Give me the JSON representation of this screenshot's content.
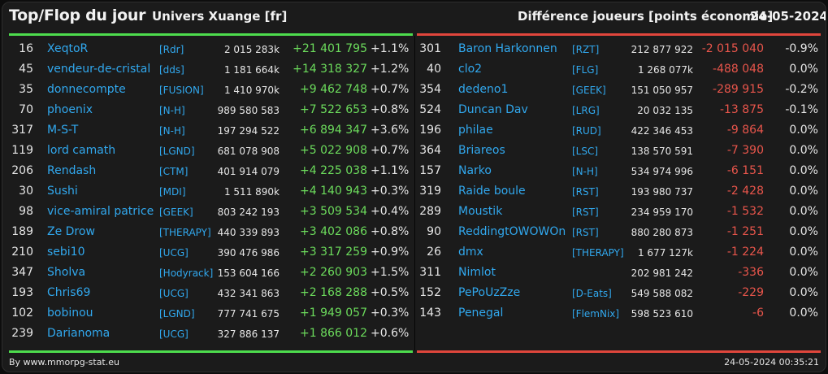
{
  "header": {
    "title": "Top/Flop du jour",
    "server": "Univers Xuange [fr]",
    "difference": "Différence joueurs [points économie]",
    "date": "24-05-2024"
  },
  "top": [
    {
      "rank": "16",
      "name": "XeqtoR",
      "alliance": "[Rdr]",
      "points": "2 015 283k",
      "delta": "+21 401 795",
      "pct": "+1.1%"
    },
    {
      "rank": "45",
      "name": "vendeur-de-cristal",
      "alliance": "[dds]",
      "points": "1 181 664k",
      "delta": "+14 318 327",
      "pct": "+1.2%"
    },
    {
      "rank": "35",
      "name": "donnecompte",
      "alliance": "[FUSION]",
      "points": "1 410 970k",
      "delta": "+9 462 748",
      "pct": "+0.7%"
    },
    {
      "rank": "70",
      "name": "phoenix",
      "alliance": "[N-H]",
      "points": "989 580 583",
      "delta": "+7 522 653",
      "pct": "+0.8%"
    },
    {
      "rank": "317",
      "name": "M-S-T",
      "alliance": "[N-H]",
      "points": "197 294 522",
      "delta": "+6 894 347",
      "pct": "+3.6%"
    },
    {
      "rank": "119",
      "name": "lord camath",
      "alliance": "[LGND]",
      "points": "681 078 908",
      "delta": "+5 022 908",
      "pct": "+0.7%"
    },
    {
      "rank": "206",
      "name": "Rendash",
      "alliance": "[CTM]",
      "points": "401 914 079",
      "delta": "+4 225 038",
      "pct": "+1.1%"
    },
    {
      "rank": "30",
      "name": "Sushi",
      "alliance": "[MDI]",
      "points": "1 511 890k",
      "delta": "+4 140 943",
      "pct": "+0.3%"
    },
    {
      "rank": "98",
      "name": "vice-amiral patrice",
      "alliance": "[GEEK]",
      "points": "803 242 193",
      "delta": "+3 509 534",
      "pct": "+0.4%"
    },
    {
      "rank": "189",
      "name": "Ze Drow",
      "alliance": "[THERAPY]",
      "points": "440 339 893",
      "delta": "+3 402 086",
      "pct": "+0.8%"
    },
    {
      "rank": "210",
      "name": "sebi10",
      "alliance": "[UCG]",
      "points": "390 476 986",
      "delta": "+3 317 259",
      "pct": "+0.9%"
    },
    {
      "rank": "347",
      "name": "Sholva",
      "alliance": "[Hodyrack]",
      "points": "153 604 166",
      "delta": "+2 260 903",
      "pct": "+1.5%"
    },
    {
      "rank": "193",
      "name": "Chris69",
      "alliance": "[UCG]",
      "points": "432 341 863",
      "delta": "+2 168 288",
      "pct": "+0.5%"
    },
    {
      "rank": "102",
      "name": "bobinou",
      "alliance": "[LGND]",
      "points": "777 741 675",
      "delta": "+1 949 057",
      "pct": "+0.3%"
    },
    {
      "rank": "239",
      "name": "Darianoma",
      "alliance": "[UCG]",
      "points": "327 886 137",
      "delta": "+1 866 012",
      "pct": "+0.6%"
    }
  ],
  "flop": [
    {
      "rank": "301",
      "name": "Baron Harkonnen",
      "alliance": "[RZT]",
      "points": "212 877 922",
      "delta": "-2 015 040",
      "pct": "-0.9%"
    },
    {
      "rank": "40",
      "name": "clo2",
      "alliance": "[FLG]",
      "points": "1 268 077k",
      "delta": "-488 048",
      "pct": "0.0%"
    },
    {
      "rank": "354",
      "name": "dedeno1",
      "alliance": "[GEEK]",
      "points": "151 050 957",
      "delta": "-289 915",
      "pct": "-0.2%"
    },
    {
      "rank": "524",
      "name": "Duncan Dav",
      "alliance": "[LRG]",
      "points": "20 032 135",
      "delta": "-13 875",
      "pct": "-0.1%"
    },
    {
      "rank": "196",
      "name": "philae",
      "alliance": "[RUD]",
      "points": "422 346 453",
      "delta": "-9 864",
      "pct": "0.0%"
    },
    {
      "rank": "364",
      "name": "Briareos",
      "alliance": "[LSC]",
      "points": "138 570 591",
      "delta": "-7 390",
      "pct": "0.0%"
    },
    {
      "rank": "157",
      "name": "Narko",
      "alliance": "[N-H]",
      "points": "534 974 996",
      "delta": "-6 151",
      "pct": "0.0%"
    },
    {
      "rank": "319",
      "name": "Raide boule",
      "alliance": "[RST]",
      "points": "193 980 737",
      "delta": "-2 428",
      "pct": "0.0%"
    },
    {
      "rank": "289",
      "name": "Moustik",
      "alliance": "[RST]",
      "points": "234 959 170",
      "delta": "-1 532",
      "pct": "0.0%"
    },
    {
      "rank": "90",
      "name": "ReddingtOWOWOn",
      "alliance": "[RST]",
      "points": "880 280 873",
      "delta": "-1 251",
      "pct": "0.0%"
    },
    {
      "rank": "26",
      "name": "dmx",
      "alliance": "[THERAPY]",
      "points": "1 677 127k",
      "delta": "-1 224",
      "pct": "0.0%"
    },
    {
      "rank": "311",
      "name": "Nimlot",
      "alliance": "",
      "points": "202 981 242",
      "delta": "-336",
      "pct": "0.0%"
    },
    {
      "rank": "152",
      "name": "PePoUzZze",
      "alliance": "[D-Eats]",
      "points": "549 588 082",
      "delta": "-229",
      "pct": "0.0%"
    },
    {
      "rank": "143",
      "name": "Penegal",
      "alliance": "[FlemNix]",
      "points": "598 523 610",
      "delta": "-6",
      "pct": "0.0%"
    }
  ],
  "footer": {
    "byline": "By www.mmorpg-stat.eu",
    "timestamp": "24-05-2024 00:35:21"
  },
  "colors": {
    "top_accent": "#4ddc4d",
    "flop_accent": "#e0463c",
    "link": "#31a8ee",
    "gain": "#6cdc5c",
    "loss": "#e8554b"
  }
}
